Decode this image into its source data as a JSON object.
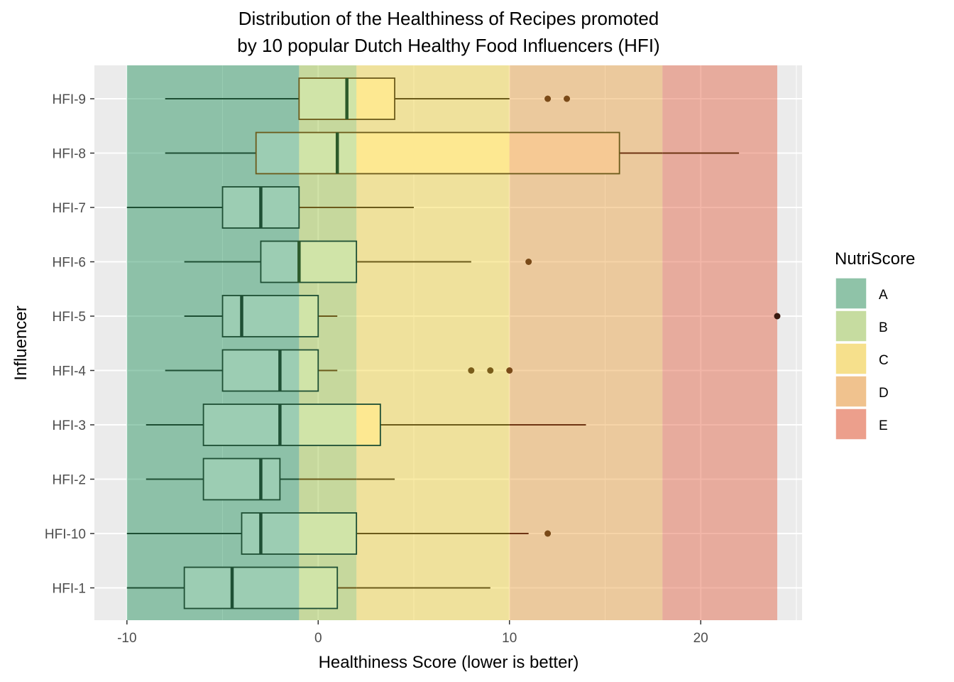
{
  "chart_data": {
    "type": "boxplot",
    "orientation": "horizontal",
    "title_lines": [
      "Distribution of the Healthiness of Recipes promoted",
      "by 10 popular Dutch Healthy Food Influencers (HFI)"
    ],
    "xlabel": "Healthiness Score (lower is better)",
    "ylabel": "Influencer",
    "xlim": [
      -11.7,
      25.3
    ],
    "x_ticks": [
      -10,
      0,
      10,
      20
    ],
    "x_tick_labels": [
      "-10",
      "0",
      "10",
      "20"
    ],
    "grid": true,
    "legend": {
      "title": "NutriScore",
      "position": "right",
      "entries": [
        {
          "label": "A",
          "color": "#8fc3a8"
        },
        {
          "label": "B",
          "color": "#c6dca0"
        },
        {
          "label": "C",
          "color": "#f6e08c"
        },
        {
          "label": "D",
          "color": "#f0c28e"
        },
        {
          "label": "E",
          "color": "#ec9f8c"
        }
      ]
    },
    "bands": [
      {
        "label": "A",
        "from": -10,
        "to": -1,
        "color": "#1b8e56"
      },
      {
        "label": "B",
        "from": -1,
        "to": 2,
        "color": "#99c23d"
      },
      {
        "label": "C",
        "from": 2,
        "to": 10,
        "color": "#f5d53b"
      },
      {
        "label": "D",
        "from": 10,
        "to": 18,
        "color": "#ea9f3d"
      },
      {
        "label": "E",
        "from": 18,
        "to": 24,
        "color": "#e35d3f"
      }
    ],
    "categories": [
      "HFI-9",
      "HFI-8",
      "HFI-7",
      "HFI-6",
      "HFI-5",
      "HFI-4",
      "HFI-3",
      "HFI-2",
      "HFI-10",
      "HFI-1"
    ],
    "boxes": [
      {
        "name": "HFI-9",
        "whisker_low": -8,
        "q1": -1,
        "median": 1.5,
        "q3": 4,
        "whisker_high": 10,
        "outliers": [
          12,
          13
        ]
      },
      {
        "name": "HFI-8",
        "whisker_low": -8,
        "q1": -3.25,
        "median": 1,
        "q3": 15.75,
        "whisker_high": 22,
        "outliers": []
      },
      {
        "name": "HFI-7",
        "whisker_low": -10,
        "q1": -5,
        "median": -3,
        "q3": -1,
        "whisker_high": 5,
        "outliers": []
      },
      {
        "name": "HFI-6",
        "whisker_low": -7,
        "q1": -3,
        "median": -1,
        "q3": 2,
        "whisker_high": 8,
        "outliers": [
          11
        ]
      },
      {
        "name": "HFI-5",
        "whisker_low": -7,
        "q1": -5,
        "median": -4,
        "q3": 0,
        "whisker_high": 1,
        "outliers": [
          24
        ]
      },
      {
        "name": "HFI-4",
        "whisker_low": -8,
        "q1": -5,
        "median": -2,
        "q3": 0,
        "whisker_high": 1,
        "outliers": [
          8,
          9,
          10
        ]
      },
      {
        "name": "HFI-3",
        "whisker_low": -9,
        "q1": -6,
        "median": -2,
        "q3": 3.25,
        "whisker_high": 14,
        "outliers": []
      },
      {
        "name": "HFI-2",
        "whisker_low": -9,
        "q1": -6,
        "median": -3,
        "q3": -2,
        "whisker_high": 4,
        "outliers": []
      },
      {
        "name": "HFI-10",
        "whisker_low": -10,
        "q1": -4,
        "median": -3,
        "q3": 2,
        "whisker_high": 11,
        "outliers": [
          12
        ]
      },
      {
        "name": "HFI-1",
        "whisker_low": -10,
        "q1": -7,
        "median": -4.5,
        "q3": 1,
        "whisker_high": 9,
        "outliers": []
      }
    ]
  },
  "style": {
    "panel_bg": "#ebebeb",
    "grid_color": "#ffffff",
    "dark_green": "#1e4f34",
    "olive": "#6b5a1a",
    "brown": "#6e3413",
    "box_fills": {
      "A": "#9ccdb3",
      "B": "#d0e4a8",
      "C": "#fde891",
      "D": "#f6c994"
    },
    "outlier_colors": {
      "B": "#7a6a1a",
      "C": "#7a5d1a",
      "D": "#7a4a18",
      "E": "#3a1a10"
    }
  }
}
